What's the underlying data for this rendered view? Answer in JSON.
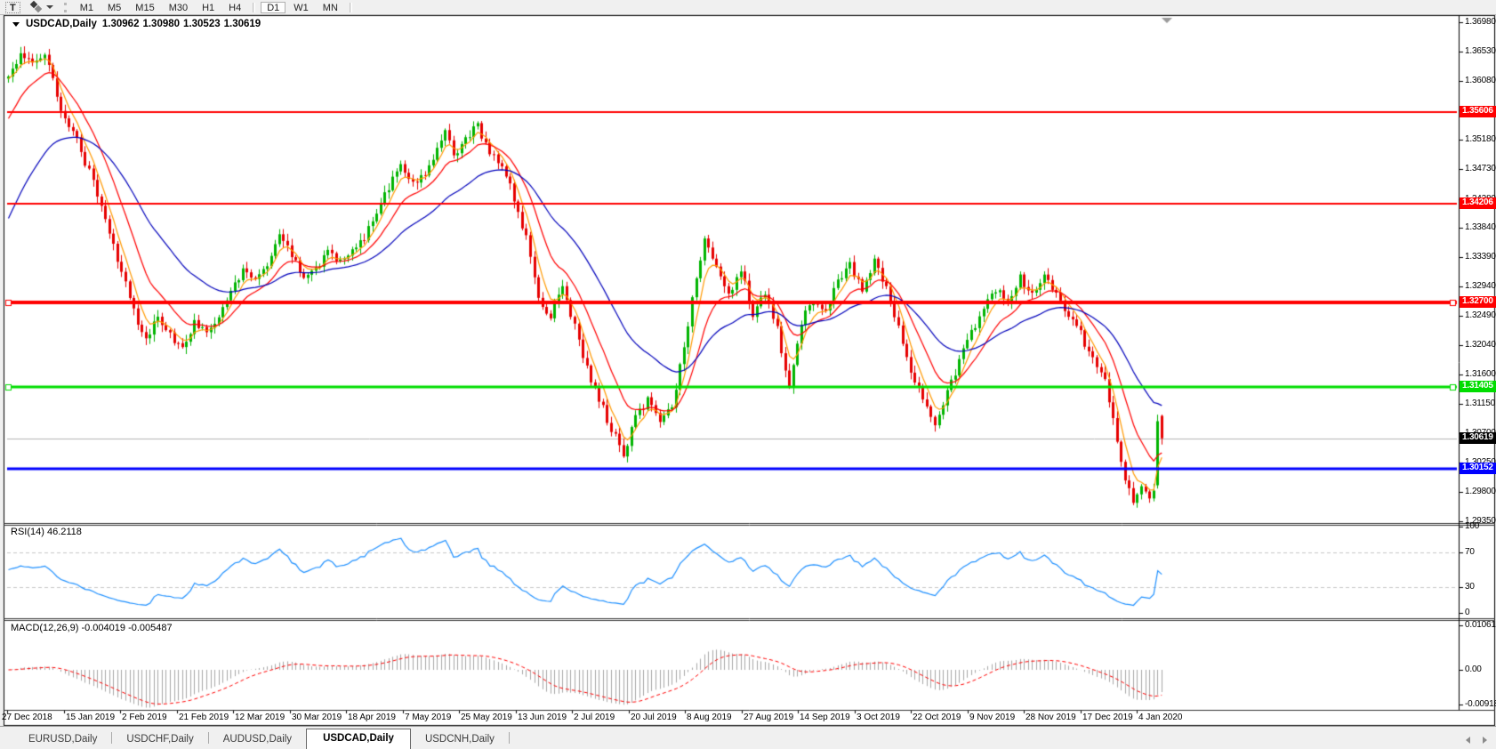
{
  "toolbar": {
    "text_tool_label": "T",
    "timeframes": [
      "M1",
      "M5",
      "M15",
      "M30",
      "H1",
      "H4",
      "D1",
      "W1",
      "MN"
    ],
    "active_timeframe": "D1"
  },
  "chart": {
    "symbol_title": "USDCAD,Daily",
    "ohlc": {
      "open": "1.30962",
      "high": "1.30980",
      "low": "1.30523",
      "close": "1.30619"
    }
  },
  "indicators": {
    "rsi_label": "RSI(14) 46.2118",
    "macd_label": "MACD(12,26,9) -0.004019 -0.005487"
  },
  "tabs": {
    "items": [
      "EURUSD,Daily",
      "USDCHF,Daily",
      "AUDUSD,Daily",
      "USDCAD,Daily",
      "USDCNH,Daily"
    ],
    "active": "USDCAD,Daily"
  },
  "chart_data": {
    "type": "candlestick",
    "symbol": "USDCAD",
    "timeframe": "Daily",
    "current": {
      "open": 1.30962,
      "high": 1.3098,
      "low": 1.30523,
      "close": 1.30619
    },
    "up_color": "#00b400",
    "down_color": "#e60000",
    "price_axis": {
      "top": 1.3698,
      "bottom": 1.2935,
      "ticks": [
        "1.36980",
        "1.36530",
        "1.36080",
        "1.35630",
        "1.35180",
        "1.34730",
        "1.34280",
        "1.33840",
        "1.33390",
        "1.32940",
        "1.32490",
        "1.32040",
        "1.31600",
        "1.31150",
        "1.30700",
        "1.30250",
        "1.29800",
        "1.29350"
      ]
    },
    "x_labels": [
      "27 Dec 2018",
      "15 Jan 2019",
      "2 Feb 2019",
      "21 Feb 2019",
      "12 Mar 2019",
      "30 Mar 2019",
      "18 Apr 2019",
      "7 May 2019",
      "25 May 2019",
      "13 Jun 2019",
      "2 Jul 2019",
      "20 Jul 2019",
      "8 Aug 2019",
      "27 Aug 2019",
      "14 Sep 2019",
      "3 Oct 2019",
      "22 Oct 2019",
      "9 Nov 2019",
      "28 Nov 2019",
      "17 Dec 2019",
      "4 Jan 2020"
    ],
    "bars": 286,
    "seed": 20200106,
    "noise": 0.0007,
    "close_path_anchors": [
      [
        0,
        1.3618
      ],
      [
        3,
        1.365
      ],
      [
        6,
        1.3634
      ],
      [
        9,
        1.3653
      ],
      [
        13,
        1.356
      ],
      [
        17,
        1.3518
      ],
      [
        21,
        1.3452
      ],
      [
        25,
        1.3375
      ],
      [
        28,
        1.3318
      ],
      [
        31,
        1.3255
      ],
      [
        34,
        1.3212
      ],
      [
        37,
        1.325
      ],
      [
        40,
        1.3222
      ],
      [
        43,
        1.3196
      ],
      [
        46,
        1.3242
      ],
      [
        49,
        1.3225
      ],
      [
        52,
        1.3245
      ],
      [
        55,
        1.329
      ],
      [
        58,
        1.3318
      ],
      [
        61,
        1.33
      ],
      [
        64,
        1.333
      ],
      [
        67,
        1.3372
      ],
      [
        70,
        1.334
      ],
      [
        73,
        1.3305
      ],
      [
        76,
        1.332
      ],
      [
        79,
        1.3348
      ],
      [
        82,
        1.333
      ],
      [
        85,
        1.3352
      ],
      [
        88,
        1.3368
      ],
      [
        91,
        1.3405
      ],
      [
        94,
        1.3445
      ],
      [
        97,
        1.3475
      ],
      [
        100,
        1.3448
      ],
      [
        104,
        1.3478
      ],
      [
        108,
        1.3535
      ],
      [
        110,
        1.3495
      ],
      [
        113,
        1.352
      ],
      [
        116,
        1.354
      ],
      [
        119,
        1.35
      ],
      [
        122,
        1.3478
      ],
      [
        125,
        1.3428
      ],
      [
        128,
        1.3368
      ],
      [
        131,
        1.3272
      ],
      [
        134,
        1.3252
      ],
      [
        137,
        1.3292
      ],
      [
        140,
        1.3232
      ],
      [
        143,
        1.317
      ],
      [
        146,
        1.312
      ],
      [
        149,
        1.3078
      ],
      [
        152,
        1.3038
      ],
      [
        155,
        1.3095
      ],
      [
        158,
        1.312
      ],
      [
        161,
        1.3082
      ],
      [
        164,
        1.311
      ],
      [
        167,
        1.32
      ],
      [
        170,
        1.331
      ],
      [
        172,
        1.3368
      ],
      [
        175,
        1.333
      ],
      [
        178,
        1.3282
      ],
      [
        181,
        1.3322
      ],
      [
        184,
        1.3252
      ],
      [
        187,
        1.3288
      ],
      [
        190,
        1.3228
      ],
      [
        193,
        1.3138
      ],
      [
        196,
        1.3242
      ],
      [
        199,
        1.327
      ],
      [
        202,
        1.3252
      ],
      [
        205,
        1.3302
      ],
      [
        208,
        1.3325
      ],
      [
        211,
        1.329
      ],
      [
        214,
        1.3332
      ],
      [
        217,
        1.3288
      ],
      [
        220,
        1.3228
      ],
      [
        223,
        1.3168
      ],
      [
        226,
        1.3118
      ],
      [
        229,
        1.3075
      ],
      [
        232,
        1.3132
      ],
      [
        235,
        1.318
      ],
      [
        238,
        1.3222
      ],
      [
        241,
        1.3262
      ],
      [
        244,
        1.3292
      ],
      [
        247,
        1.3272
      ],
      [
        250,
        1.3308
      ],
      [
        253,
        1.3282
      ],
      [
        256,
        1.3318
      ],
      [
        259,
        1.3282
      ],
      [
        262,
        1.3252
      ],
      [
        265,
        1.3222
      ],
      [
        268,
        1.3182
      ],
      [
        271,
        1.3152
      ],
      [
        274,
        1.3062
      ],
      [
        276,
        1.2992
      ],
      [
        278,
        1.2968
      ],
      [
        280,
        1.2988
      ],
      [
        282,
        1.2972
      ],
      [
        284,
        1.2998
      ],
      [
        285,
        1.3062
      ]
    ],
    "moving_averages": [
      {
        "period": 5,
        "color": "#ff9900",
        "seed_value": 1.361
      },
      {
        "period": 13,
        "color": "#ff0000",
        "seed_value": 1.354
      },
      {
        "period": 34,
        "color": "#0000bb",
        "seed_value": 1.3385
      }
    ],
    "h_lines": [
      {
        "price": 1.35606,
        "label": "1.35606",
        "color": "#ff0000",
        "width": 2,
        "handles": false
      },
      {
        "price": 1.34206,
        "label": "1.34206",
        "color": "#ff0000",
        "width": 2,
        "handles": false
      },
      {
        "price": 1.327,
        "label": "1.32700",
        "color": "#ff0000",
        "width": 4,
        "handles": true
      },
      {
        "price": 1.31405,
        "label": "1.31405",
        "color": "#00dd00",
        "width": 3,
        "handles": true
      },
      {
        "price": 1.30152,
        "label": "1.30152",
        "color": "#0000ff",
        "width": 3,
        "handles": false
      }
    ],
    "bid": {
      "price": 1.30619,
      "label": "1.30619",
      "line_color": "#b4b4b4",
      "tag_bg": "#000000"
    },
    "rsi": {
      "period": 14,
      "color": "#1e90ff",
      "axis_ticks": [
        "100",
        "70",
        "30",
        "0"
      ],
      "axis_values": [
        100,
        70,
        30,
        0
      ],
      "levels": [
        70,
        30
      ],
      "last": 46.2118
    },
    "macd": {
      "fast": 12,
      "slow": 26,
      "signal": 9,
      "hist_color": "#a6a6a6",
      "signal_color": "#ff0000",
      "axis_ticks": [
        "0.010615",
        "0.00",
        "-0.00918"
      ],
      "axis_values": [
        0.010615,
        0,
        -0.00918
      ],
      "last_macd": -0.004019,
      "last_signal": -0.005487
    }
  }
}
